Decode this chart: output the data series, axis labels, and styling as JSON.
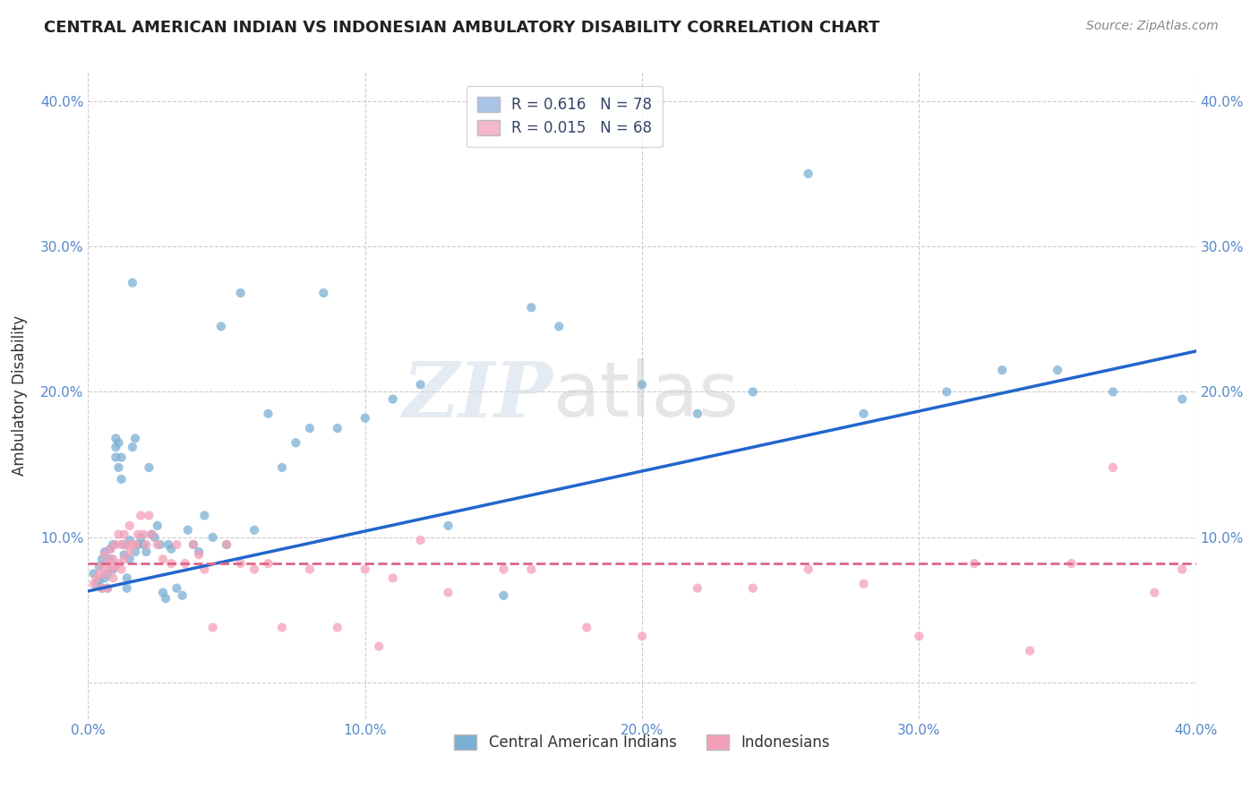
{
  "title": "CENTRAL AMERICAN INDIAN VS INDONESIAN AMBULATORY DISABILITY CORRELATION CHART",
  "source": "Source: ZipAtlas.com",
  "ylabel": "Ambulatory Disability",
  "watermark": "ZIPatlas",
  "legend_entries": [
    {
      "label_r": "R = 0.616",
      "label_n": "N = 78",
      "color": "#aac4e8"
    },
    {
      "label_r": "R = 0.015",
      "label_n": "N = 68",
      "color": "#f5b8cc"
    }
  ],
  "legend_bottom": [
    "Central American Indians",
    "Indonesians"
  ],
  "blue_color": "#7bafd4",
  "pink_color": "#f4a0b8",
  "blue_line_color": "#2266cc",
  "pink_line_color": "#dd6688",
  "xmin": 0.0,
  "xmax": 0.4,
  "ymin": -0.025,
  "ymax": 0.42,
  "blue_scatter_x": [
    0.002,
    0.003,
    0.004,
    0.004,
    0.005,
    0.005,
    0.006,
    0.006,
    0.007,
    0.007,
    0.008,
    0.008,
    0.009,
    0.009,
    0.01,
    0.01,
    0.01,
    0.011,
    0.011,
    0.012,
    0.012,
    0.013,
    0.013,
    0.014,
    0.014,
    0.015,
    0.015,
    0.016,
    0.016,
    0.017,
    0.017,
    0.018,
    0.019,
    0.02,
    0.021,
    0.022,
    0.023,
    0.024,
    0.025,
    0.026,
    0.027,
    0.028,
    0.029,
    0.03,
    0.032,
    0.034,
    0.036,
    0.038,
    0.04,
    0.042,
    0.045,
    0.048,
    0.05,
    0.055,
    0.06,
    0.065,
    0.07,
    0.075,
    0.08,
    0.085,
    0.09,
    0.1,
    0.11,
    0.12,
    0.13,
    0.15,
    0.16,
    0.17,
    0.2,
    0.22,
    0.24,
    0.26,
    0.28,
    0.31,
    0.33,
    0.35,
    0.37,
    0.395
  ],
  "blue_scatter_y": [
    0.075,
    0.068,
    0.08,
    0.07,
    0.065,
    0.085,
    0.072,
    0.09,
    0.075,
    0.065,
    0.085,
    0.092,
    0.078,
    0.095,
    0.155,
    0.168,
    0.162,
    0.148,
    0.165,
    0.155,
    0.14,
    0.088,
    0.095,
    0.072,
    0.065,
    0.085,
    0.098,
    0.275,
    0.162,
    0.168,
    0.09,
    0.095,
    0.1,
    0.095,
    0.09,
    0.148,
    0.102,
    0.1,
    0.108,
    0.095,
    0.062,
    0.058,
    0.095,
    0.092,
    0.065,
    0.06,
    0.105,
    0.095,
    0.09,
    0.115,
    0.1,
    0.245,
    0.095,
    0.268,
    0.105,
    0.185,
    0.148,
    0.165,
    0.175,
    0.268,
    0.175,
    0.182,
    0.195,
    0.205,
    0.108,
    0.06,
    0.258,
    0.245,
    0.205,
    0.185,
    0.2,
    0.35,
    0.185,
    0.2,
    0.215,
    0.215,
    0.2,
    0.195
  ],
  "pink_scatter_x": [
    0.002,
    0.003,
    0.004,
    0.005,
    0.005,
    0.006,
    0.006,
    0.007,
    0.007,
    0.008,
    0.008,
    0.009,
    0.009,
    0.01,
    0.01,
    0.011,
    0.011,
    0.012,
    0.012,
    0.013,
    0.013,
    0.014,
    0.015,
    0.015,
    0.016,
    0.017,
    0.018,
    0.019,
    0.02,
    0.021,
    0.022,
    0.023,
    0.025,
    0.027,
    0.03,
    0.032,
    0.035,
    0.038,
    0.04,
    0.042,
    0.045,
    0.05,
    0.055,
    0.06,
    0.065,
    0.07,
    0.08,
    0.09,
    0.1,
    0.11,
    0.12,
    0.13,
    0.15,
    0.16,
    0.18,
    0.2,
    0.22,
    0.24,
    0.26,
    0.28,
    0.3,
    0.32,
    0.34,
    0.355,
    0.37,
    0.385,
    0.395,
    0.105
  ],
  "pink_scatter_y": [
    0.068,
    0.072,
    0.075,
    0.065,
    0.08,
    0.088,
    0.075,
    0.082,
    0.065,
    0.078,
    0.092,
    0.072,
    0.085,
    0.095,
    0.08,
    0.102,
    0.082,
    0.078,
    0.095,
    0.085,
    0.102,
    0.095,
    0.108,
    0.09,
    0.095,
    0.095,
    0.102,
    0.115,
    0.102,
    0.095,
    0.115,
    0.102,
    0.095,
    0.085,
    0.082,
    0.095,
    0.082,
    0.095,
    0.088,
    0.078,
    0.038,
    0.095,
    0.082,
    0.078,
    0.082,
    0.038,
    0.078,
    0.038,
    0.078,
    0.072,
    0.098,
    0.062,
    0.078,
    0.078,
    0.038,
    0.032,
    0.065,
    0.065,
    0.078,
    0.068,
    0.032,
    0.082,
    0.022,
    0.082,
    0.148,
    0.062,
    0.078,
    0.025
  ],
  "blue_line_x": [
    0.0,
    0.4
  ],
  "blue_line_y": [
    0.063,
    0.228
  ],
  "pink_line_x": [
    0.0,
    0.4
  ],
  "pink_line_y": [
    0.082,
    0.082
  ],
  "ytick_labels_left": [
    "",
    "10.0%",
    "20.0%",
    "30.0%",
    "40.0%"
  ],
  "ytick_labels_right": [
    "",
    "10.0%",
    "20.0%",
    "30.0%",
    "40.0%"
  ],
  "ytick_values": [
    0.0,
    0.1,
    0.2,
    0.3,
    0.4
  ],
  "xtick_labels": [
    "0.0%",
    "",
    "10.0%",
    "",
    "20.0%",
    "",
    "30.0%",
    "",
    "40.0%"
  ],
  "xtick_values": [
    0.0,
    0.05,
    0.1,
    0.15,
    0.2,
    0.25,
    0.3,
    0.35,
    0.4
  ],
  "grid_color": "#cccccc",
  "background_color": "#ffffff"
}
